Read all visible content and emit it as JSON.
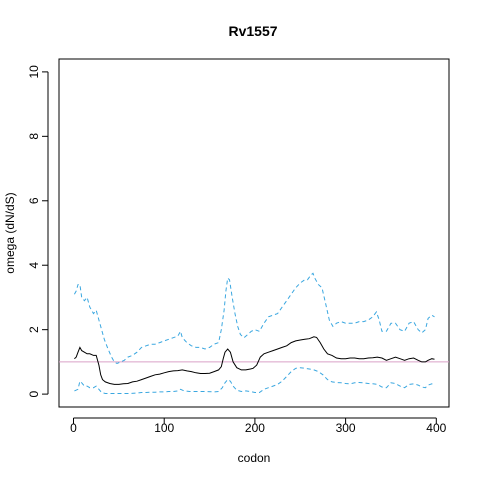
{
  "chart_data": {
    "type": "line",
    "title": "Rv1557",
    "xlabel": "codon",
    "ylabel": "omega (dN/dS)",
    "xlim": [
      -16,
      414
    ],
    "ylim": [
      -0.4,
      10.4
    ],
    "x_ticks": [
      "0",
      "100",
      "200",
      "300",
      "400"
    ],
    "y_ticks": [
      "0",
      "2",
      "4",
      "6",
      "8",
      "10"
    ],
    "reference_line": {
      "y": 1,
      "color": "#d9a0c8"
    },
    "series": [
      {
        "role": "upper-bound",
        "style": "dashed",
        "color": "#3aa7e0",
        "points": [
          [
            1,
            3.1
          ],
          [
            3,
            3.2
          ],
          [
            5,
            3.4
          ],
          [
            7,
            3.4
          ],
          [
            9,
            3.0
          ],
          [
            12,
            2.9
          ],
          [
            15,
            3.0
          ],
          [
            18,
            2.7
          ],
          [
            22,
            2.5
          ],
          [
            25,
            2.6
          ],
          [
            28,
            2.3
          ],
          [
            31,
            2.0
          ],
          [
            34,
            1.7
          ],
          [
            38,
            1.4
          ],
          [
            42,
            1.15
          ],
          [
            45,
            1.0
          ],
          [
            48,
            0.95
          ],
          [
            52,
            1.0
          ],
          [
            56,
            1.05
          ],
          [
            60,
            1.15
          ],
          [
            65,
            1.2
          ],
          [
            70,
            1.3
          ],
          [
            75,
            1.45
          ],
          [
            80,
            1.5
          ],
          [
            85,
            1.55
          ],
          [
            90,
            1.55
          ],
          [
            95,
            1.6
          ],
          [
            100,
            1.65
          ],
          [
            105,
            1.7
          ],
          [
            110,
            1.75
          ],
          [
            115,
            1.8
          ],
          [
            118,
            1.95
          ],
          [
            120,
            1.75
          ],
          [
            125,
            1.6
          ],
          [
            130,
            1.5
          ],
          [
            135,
            1.45
          ],
          [
            140,
            1.45
          ],
          [
            145,
            1.4
          ],
          [
            150,
            1.45
          ],
          [
            155,
            1.55
          ],
          [
            160,
            1.6
          ],
          [
            163,
            2.0
          ],
          [
            166,
            2.6
          ],
          [
            168,
            3.2
          ],
          [
            170,
            3.6
          ],
          [
            172,
            3.55
          ],
          [
            175,
            3.0
          ],
          [
            178,
            2.5
          ],
          [
            181,
            2.1
          ],
          [
            184,
            1.85
          ],
          [
            188,
            1.75
          ],
          [
            192,
            1.85
          ],
          [
            196,
            1.95
          ],
          [
            200,
            2.0
          ],
          [
            205,
            1.95
          ],
          [
            210,
            2.2
          ],
          [
            215,
            2.4
          ],
          [
            220,
            2.45
          ],
          [
            225,
            2.5
          ],
          [
            230,
            2.7
          ],
          [
            235,
            2.9
          ],
          [
            240,
            3.1
          ],
          [
            245,
            3.3
          ],
          [
            250,
            3.45
          ],
          [
            255,
            3.55
          ],
          [
            258,
            3.55
          ],
          [
            262,
            3.7
          ],
          [
            264,
            3.75
          ],
          [
            266,
            3.6
          ],
          [
            270,
            3.4
          ],
          [
            274,
            3.3
          ],
          [
            278,
            2.8
          ],
          [
            282,
            2.3
          ],
          [
            286,
            2.1
          ],
          [
            290,
            2.2
          ],
          [
            295,
            2.25
          ],
          [
            300,
            2.2
          ],
          [
            305,
            2.2
          ],
          [
            310,
            2.2
          ],
          [
            315,
            2.25
          ],
          [
            320,
            2.25
          ],
          [
            325,
            2.3
          ],
          [
            330,
            2.4
          ],
          [
            334,
            2.55
          ],
          [
            337,
            2.3
          ],
          [
            340,
            1.95
          ],
          [
            345,
            1.95
          ],
          [
            350,
            2.2
          ],
          [
            355,
            2.2
          ],
          [
            360,
            2.0
          ],
          [
            365,
            1.95
          ],
          [
            370,
            2.2
          ],
          [
            375,
            2.25
          ],
          [
            380,
            2.0
          ],
          [
            384,
            1.9
          ],
          [
            388,
            2.0
          ],
          [
            391,
            2.35
          ],
          [
            395,
            2.45
          ],
          [
            398,
            2.4
          ]
        ]
      },
      {
        "role": "estimate",
        "style": "solid",
        "color": "#000000",
        "points": [
          [
            1,
            1.1
          ],
          [
            3,
            1.15
          ],
          [
            5,
            1.3
          ],
          [
            7,
            1.45
          ],
          [
            9,
            1.35
          ],
          [
            12,
            1.3
          ],
          [
            15,
            1.25
          ],
          [
            18,
            1.25
          ],
          [
            22,
            1.2
          ],
          [
            25,
            1.2
          ],
          [
            28,
            0.9
          ],
          [
            30,
            0.6
          ],
          [
            32,
            0.45
          ],
          [
            35,
            0.38
          ],
          [
            40,
            0.33
          ],
          [
            45,
            0.3
          ],
          [
            50,
            0.3
          ],
          [
            55,
            0.32
          ],
          [
            60,
            0.33
          ],
          [
            65,
            0.38
          ],
          [
            70,
            0.4
          ],
          [
            75,
            0.45
          ],
          [
            80,
            0.5
          ],
          [
            85,
            0.55
          ],
          [
            90,
            0.6
          ],
          [
            95,
            0.62
          ],
          [
            100,
            0.66
          ],
          [
            105,
            0.7
          ],
          [
            110,
            0.72
          ],
          [
            115,
            0.73
          ],
          [
            120,
            0.75
          ],
          [
            125,
            0.72
          ],
          [
            130,
            0.7
          ],
          [
            135,
            0.66
          ],
          [
            140,
            0.64
          ],
          [
            145,
            0.64
          ],
          [
            150,
            0.65
          ],
          [
            155,
            0.7
          ],
          [
            160,
            0.75
          ],
          [
            163,
            0.85
          ],
          [
            165,
            1.1
          ],
          [
            167,
            1.3
          ],
          [
            170,
            1.4
          ],
          [
            173,
            1.3
          ],
          [
            176,
            1.0
          ],
          [
            180,
            0.82
          ],
          [
            185,
            0.75
          ],
          [
            190,
            0.75
          ],
          [
            195,
            0.78
          ],
          [
            198,
            0.8
          ],
          [
            202,
            0.9
          ],
          [
            206,
            1.15
          ],
          [
            210,
            1.25
          ],
          [
            215,
            1.3
          ],
          [
            220,
            1.35
          ],
          [
            225,
            1.4
          ],
          [
            230,
            1.45
          ],
          [
            235,
            1.5
          ],
          [
            240,
            1.6
          ],
          [
            245,
            1.65
          ],
          [
            250,
            1.68
          ],
          [
            255,
            1.7
          ],
          [
            260,
            1.72
          ],
          [
            265,
            1.78
          ],
          [
            268,
            1.76
          ],
          [
            272,
            1.6
          ],
          [
            276,
            1.4
          ],
          [
            280,
            1.25
          ],
          [
            285,
            1.2
          ],
          [
            290,
            1.12
          ],
          [
            295,
            1.1
          ],
          [
            300,
            1.1
          ],
          [
            305,
            1.12
          ],
          [
            310,
            1.12
          ],
          [
            315,
            1.1
          ],
          [
            320,
            1.1
          ],
          [
            325,
            1.12
          ],
          [
            330,
            1.13
          ],
          [
            335,
            1.15
          ],
          [
            340,
            1.12
          ],
          [
            345,
            1.05
          ],
          [
            350,
            1.1
          ],
          [
            355,
            1.15
          ],
          [
            360,
            1.1
          ],
          [
            365,
            1.05
          ],
          [
            370,
            1.1
          ],
          [
            375,
            1.12
          ],
          [
            380,
            1.05
          ],
          [
            384,
            1.0
          ],
          [
            388,
            1.0
          ],
          [
            391,
            1.05
          ],
          [
            395,
            1.1
          ],
          [
            398,
            1.08
          ]
        ]
      },
      {
        "role": "lower-bound",
        "style": "dashed",
        "color": "#3aa7e0",
        "points": [
          [
            1,
            0.1
          ],
          [
            5,
            0.15
          ],
          [
            7,
            0.4
          ],
          [
            9,
            0.35
          ],
          [
            12,
            0.25
          ],
          [
            15,
            0.25
          ],
          [
            18,
            0.2
          ],
          [
            22,
            0.2
          ],
          [
            25,
            0.25
          ],
          [
            28,
            0.15
          ],
          [
            31,
            0.05
          ],
          [
            35,
            0.02
          ],
          [
            45,
            0.02
          ],
          [
            60,
            0.02
          ],
          [
            70,
            0.03
          ],
          [
            75,
            0.05
          ],
          [
            80,
            0.05
          ],
          [
            85,
            0.06
          ],
          [
            90,
            0.06
          ],
          [
            95,
            0.07
          ],
          [
            100,
            0.07
          ],
          [
            105,
            0.08
          ],
          [
            110,
            0.08
          ],
          [
            115,
            0.1
          ],
          [
            118,
            0.15
          ],
          [
            122,
            0.1
          ],
          [
            128,
            0.08
          ],
          [
            135,
            0.08
          ],
          [
            145,
            0.08
          ],
          [
            155,
            0.07
          ],
          [
            160,
            0.08
          ],
          [
            164,
            0.2
          ],
          [
            167,
            0.35
          ],
          [
            170,
            0.45
          ],
          [
            173,
            0.4
          ],
          [
            176,
            0.25
          ],
          [
            180,
            0.12
          ],
          [
            185,
            0.08
          ],
          [
            190,
            0.1
          ],
          [
            195,
            0.08
          ],
          [
            200,
            0.05
          ],
          [
            205,
            0.05
          ],
          [
            210,
            0.15
          ],
          [
            215,
            0.2
          ],
          [
            220,
            0.25
          ],
          [
            225,
            0.3
          ],
          [
            230,
            0.4
          ],
          [
            235,
            0.55
          ],
          [
            240,
            0.7
          ],
          [
            245,
            0.8
          ],
          [
            250,
            0.82
          ],
          [
            255,
            0.8
          ],
          [
            260,
            0.78
          ],
          [
            265,
            0.75
          ],
          [
            270,
            0.7
          ],
          [
            275,
            0.6
          ],
          [
            280,
            0.45
          ],
          [
            285,
            0.38
          ],
          [
            290,
            0.36
          ],
          [
            295,
            0.35
          ],
          [
            300,
            0.33
          ],
          [
            305,
            0.32
          ],
          [
            310,
            0.35
          ],
          [
            315,
            0.36
          ],
          [
            320,
            0.35
          ],
          [
            325,
            0.33
          ],
          [
            330,
            0.32
          ],
          [
            335,
            0.3
          ],
          [
            340,
            0.22
          ],
          [
            345,
            0.2
          ],
          [
            350,
            0.35
          ],
          [
            355,
            0.33
          ],
          [
            360,
            0.25
          ],
          [
            365,
            0.2
          ],
          [
            370,
            0.3
          ],
          [
            375,
            0.32
          ],
          [
            380,
            0.28
          ],
          [
            384,
            0.22
          ],
          [
            388,
            0.2
          ],
          [
            391,
            0.28
          ],
          [
            395,
            0.32
          ],
          [
            398,
            0.25
          ]
        ]
      }
    ]
  }
}
